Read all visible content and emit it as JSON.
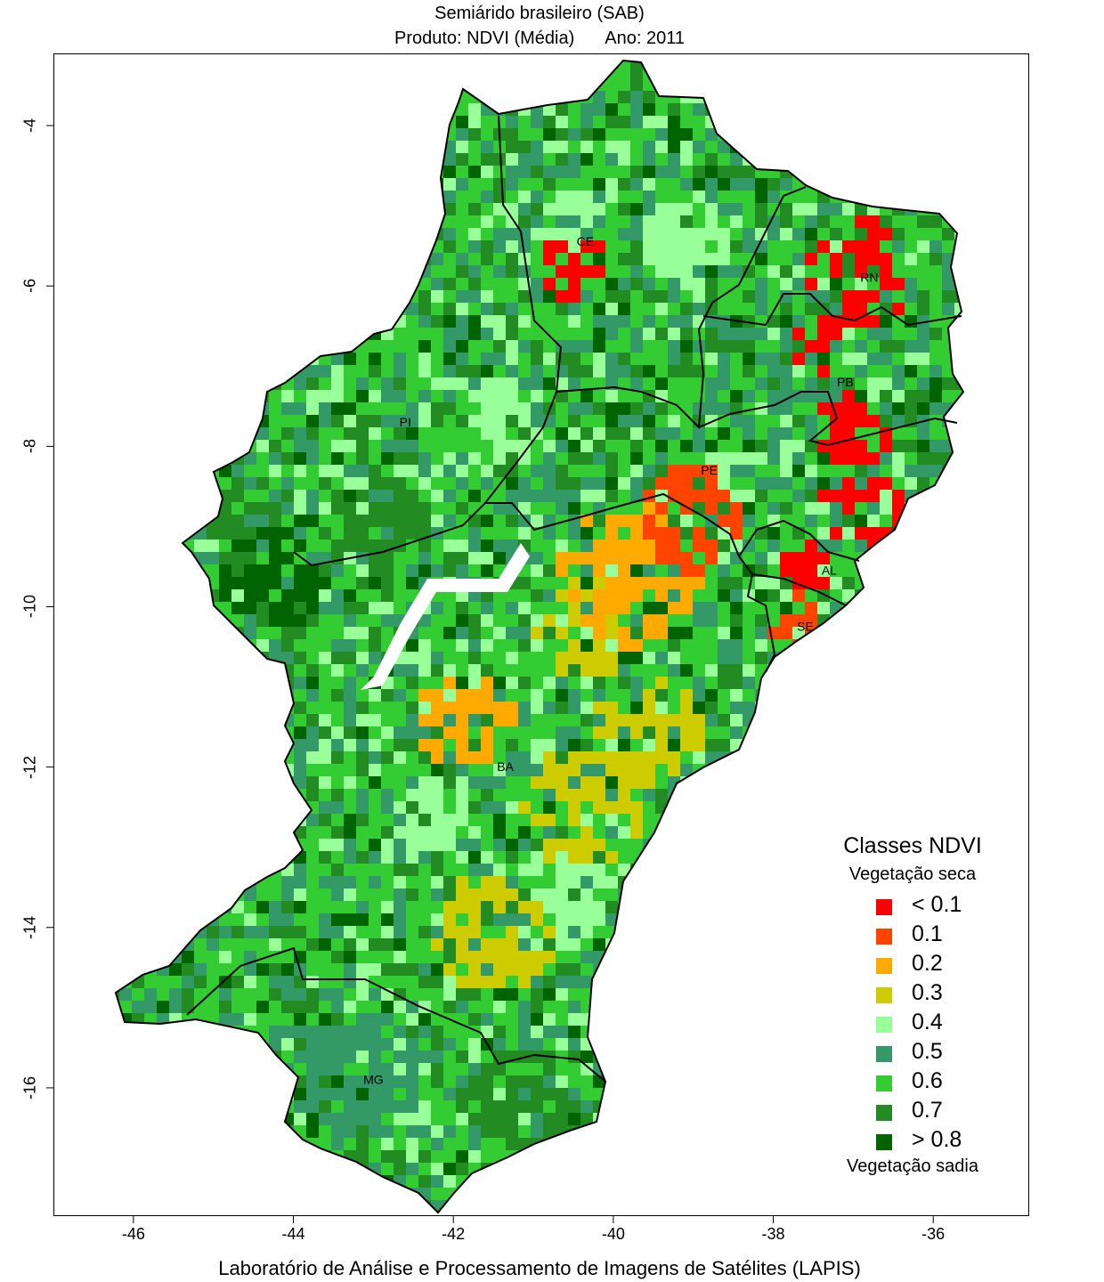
{
  "title": "Semiárido brasileiro (SAB)",
  "subtitle": {
    "product": "Produto: NDVI (Média)",
    "year": "Ano:  2011"
  },
  "axes": {
    "x_ticks": [
      "-46",
      "-44",
      "-42",
      "-40",
      "-38",
      "-36"
    ],
    "y_ticks": [
      "-4",
      "-6",
      "-8",
      "-10",
      "-12",
      "-14",
      "-16"
    ],
    "x_range": [
      -47.0,
      -34.8
    ],
    "y_range": [
      -17.6,
      -3.1
    ]
  },
  "credit": "Laboratório de Análise e Processamento de Imagens de Satélites (LAPIS)",
  "legend": {
    "title": "Classes NDVI",
    "top_note": "Vegetação seca",
    "bottom_note": "Vegetação sadia",
    "classes": [
      {
        "label": "< 0.1",
        "color": "#ff0000"
      },
      {
        "label": "0.1",
        "color": "#ff4400"
      },
      {
        "label": "0.2",
        "color": "#ffaa00"
      },
      {
        "label": "0.3",
        "color": "#cccc00"
      },
      {
        "label": "0.4",
        "color": "#99ff99"
      },
      {
        "label": "0.5",
        "color": "#339966"
      },
      {
        "label": "0.6",
        "color": "#33cc33"
      },
      {
        "label": "0.7",
        "color": "#228b22"
      },
      {
        "label": "> 0.8",
        "color": "#006400"
      }
    ]
  },
  "states": [
    {
      "name": "CE",
      "lon": -40.35,
      "lat": -5.5
    },
    {
      "name": "RN",
      "lon": -36.8,
      "lat": -5.95
    },
    {
      "name": "PB",
      "lon": -37.1,
      "lat": -7.25
    },
    {
      "name": "PI",
      "lon": -42.6,
      "lat": -7.75
    },
    {
      "name": "PE",
      "lon": -38.8,
      "lat": -8.35
    },
    {
      "name": "AL",
      "lon": -37.3,
      "lat": -9.6
    },
    {
      "name": "SE",
      "lon": -37.6,
      "lat": -10.3
    },
    {
      "name": "BA",
      "lon": -41.35,
      "lat": -12.05
    },
    {
      "name": "MG",
      "lon": -43.0,
      "lat": -15.95
    }
  ]
}
